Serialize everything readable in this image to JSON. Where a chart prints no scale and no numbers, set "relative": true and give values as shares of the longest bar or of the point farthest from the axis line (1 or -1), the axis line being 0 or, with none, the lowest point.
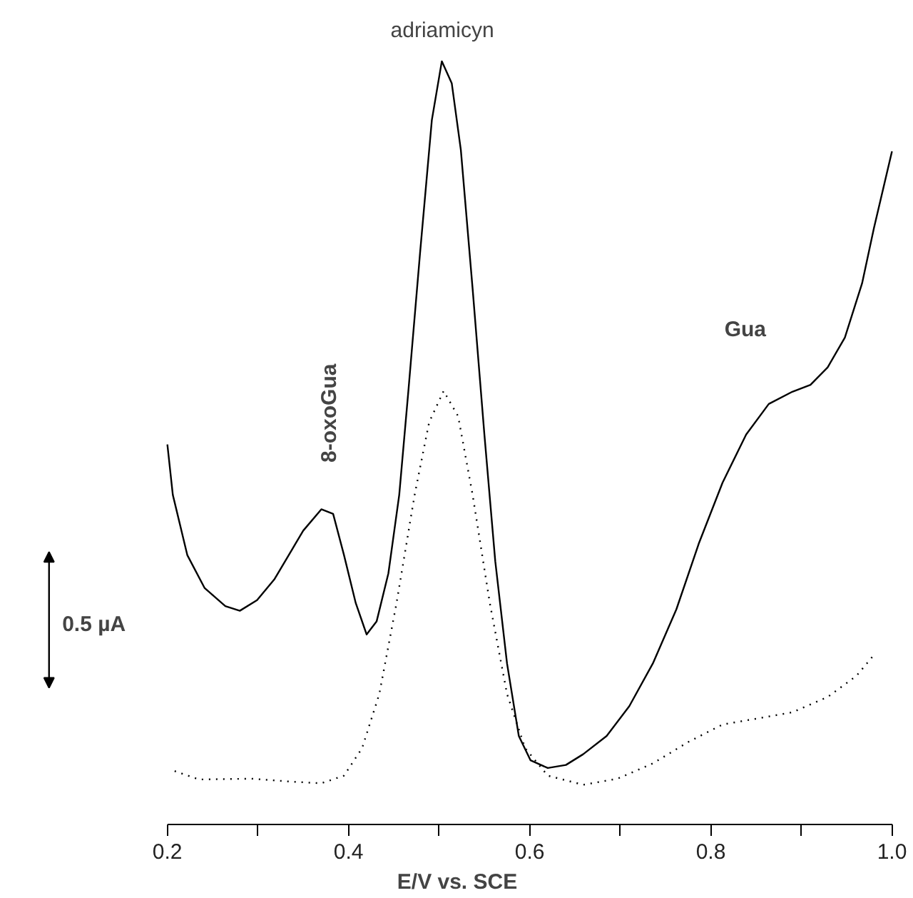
{
  "chart_data": {
    "type": "line",
    "relative": true,
    "xlabel": "E/V vs. SCE",
    "xlim": [
      0.2,
      1.0
    ],
    "xticks": [
      0.2,
      {
        "value": 0.3,
        "label": null
      },
      0.4,
      {
        "value": 0.5,
        "label": null
      },
      0.6,
      {
        "value": 0.7,
        "label": null
      },
      0.8,
      {
        "value": 0.9,
        "label": null
      },
      {
        "value": 1.0,
        "label": "1.0"
      }
    ],
    "tick_labels": "x",
    "grid": false,
    "marker": "none",
    "annotations": [
      "adriamicyn",
      "8-oxoGua",
      "Gua",
      "0.5 µA"
    ],
    "series": [
      {
        "color": "#000000",
        "line_style": "solid",
        "x": [
          0.2,
          0.206,
          0.222,
          0.241,
          0.264,
          0.28,
          0.299,
          0.318,
          0.338,
          0.35,
          0.37,
          0.383,
          0.395,
          0.408,
          0.42,
          0.431,
          0.444,
          0.456,
          0.466,
          0.479,
          0.492,
          0.503,
          0.514,
          0.524,
          0.537,
          0.55,
          0.562,
          0.575,
          0.588,
          0.601,
          0.62,
          0.64,
          0.659,
          0.685,
          0.71,
          0.736,
          0.762,
          0.787,
          0.813,
          0.839,
          0.864,
          0.89,
          0.91,
          0.929,
          0.948,
          0.967,
          0.98,
          1.0
        ],
        "values": [
          0.498,
          0.432,
          0.353,
          0.31,
          0.286,
          0.28,
          0.294,
          0.321,
          0.361,
          0.385,
          0.413,
          0.407,
          0.353,
          0.29,
          0.249,
          0.266,
          0.329,
          0.432,
          0.567,
          0.749,
          0.923,
          1.0,
          0.971,
          0.884,
          0.702,
          0.511,
          0.345,
          0.211,
          0.116,
          0.084,
          0.074,
          0.078,
          0.092,
          0.116,
          0.155,
          0.211,
          0.282,
          0.369,
          0.448,
          0.511,
          0.551,
          0.567,
          0.576,
          0.599,
          0.638,
          0.709,
          0.781,
          0.882
        ]
      },
      {
        "color": "#000000",
        "line_style": "dotted",
        "x": [
          0.208,
          0.235,
          0.293,
          0.338,
          0.37,
          0.395,
          0.415,
          0.434,
          0.453,
          0.473,
          0.489,
          0.505,
          0.521,
          0.537,
          0.556,
          0.575,
          0.595,
          0.62,
          0.659,
          0.697,
          0.736,
          0.775,
          0.813,
          0.852,
          0.89,
          0.929,
          0.961,
          0.98
        ],
        "values": [
          0.07,
          0.059,
          0.06,
          0.056,
          0.054,
          0.064,
          0.1,
          0.171,
          0.29,
          0.432,
          0.527,
          0.568,
          0.535,
          0.432,
          0.29,
          0.171,
          0.1,
          0.064,
          0.052,
          0.06,
          0.08,
          0.108,
          0.131,
          0.139,
          0.147,
          0.167,
          0.195,
          0.222
        ]
      }
    ]
  }
}
